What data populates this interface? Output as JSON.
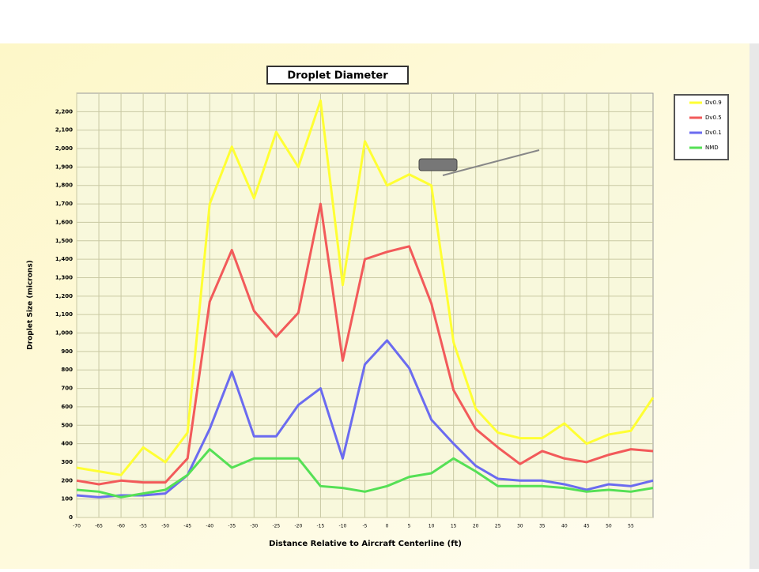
{
  "chart_data": {
    "type": "line",
    "title": "Droplet Diameter",
    "x_label": "Distance Relative to Aircraft Centerline (ft)",
    "y_label": "Droplet Size (microns)",
    "x": [
      -70,
      -65,
      -60,
      -55,
      -50,
      -45,
      -40,
      -35,
      -30,
      -25,
      -20,
      -15,
      -10,
      -5,
      0,
      5,
      10,
      15,
      20,
      25,
      30,
      35,
      40,
      45,
      50,
      55,
      60
    ],
    "xlim": [
      -70,
      60
    ],
    "xticks": [
      -70,
      -65,
      -60,
      -55,
      -50,
      -45,
      -40,
      -35,
      -30,
      -25,
      -20,
      -15,
      -10,
      -5,
      0,
      5,
      10,
      15,
      20,
      25,
      30,
      35,
      40,
      45,
      50,
      55
    ],
    "ylim": [
      0,
      2300
    ],
    "yticks": [
      0,
      100,
      200,
      300,
      400,
      500,
      600,
      700,
      800,
      900,
      {
        "value": 1000,
        "label": "1,000"
      },
      {
        "value": 1100,
        "label": "1,100"
      },
      {
        "value": 1200,
        "label": "1,200"
      },
      {
        "value": 1300,
        "label": "1,300"
      },
      {
        "value": 1400,
        "label": "1,400"
      },
      {
        "value": 1500,
        "label": "1,500"
      },
      {
        "value": 1600,
        "label": "1,600"
      },
      {
        "value": 1700,
        "label": "1,700"
      },
      {
        "value": 1800,
        "label": "1,800"
      },
      {
        "value": 1900,
        "label": "1,900"
      },
      {
        "value": 2000,
        "label": "2,000"
      },
      {
        "value": 2100,
        "label": "2,100"
      },
      {
        "value": 2200,
        "label": "2,200"
      }
    ],
    "grid": true,
    "legend": "right",
    "series": [
      {
        "name": "Dv0.9",
        "color": "#ffff33",
        "values": [
          270,
          250,
          230,
          380,
          300,
          460,
          1700,
          2010,
          1730,
          2090,
          1900,
          2260,
          1260,
          2040,
          1800,
          1860,
          1800,
          950,
          590,
          460,
          430,
          430,
          510,
          400,
          450,
          470,
          650
        ]
      },
      {
        "name": "Dv0.5",
        "color": "#f25a5a",
        "values": [
          200,
          180,
          200,
          190,
          190,
          320,
          1170,
          1450,
          1120,
          980,
          1110,
          1700,
          850,
          1400,
          1440,
          1470,
          1160,
          690,
          480,
          380,
          290,
          360,
          320,
          300,
          340,
          370,
          360
        ]
      },
      {
        "name": "Dv0.1",
        "color": "#6b6bf0",
        "values": [
          120,
          110,
          120,
          120,
          130,
          230,
          480,
          790,
          440,
          440,
          610,
          700,
          320,
          830,
          960,
          810,
          530,
          400,
          280,
          210,
          200,
          200,
          180,
          150,
          180,
          170,
          200
        ]
      },
      {
        "name": "NMD",
        "color": "#55e055",
        "values": [
          150,
          140,
          110,
          130,
          150,
          230,
          370,
          270,
          320,
          320,
          320,
          170,
          160,
          140,
          170,
          220,
          240,
          320,
          250,
          170,
          170,
          170,
          160,
          140,
          150,
          140,
          160
        ]
      }
    ]
  }
}
